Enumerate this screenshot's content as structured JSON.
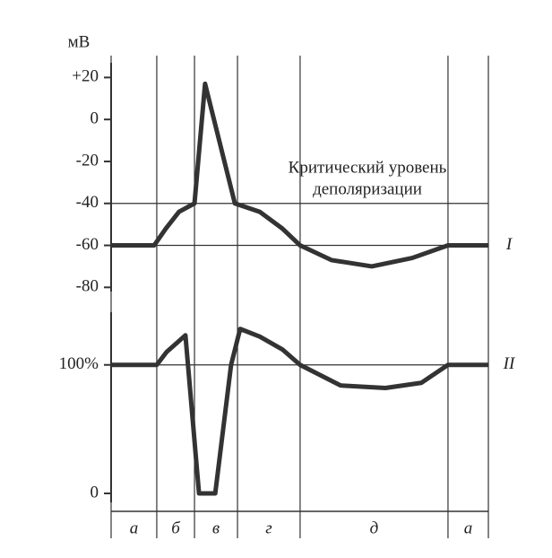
{
  "chart_data": [
    {
      "type": "line",
      "y_unit": "мВ",
      "xlim": [
        0,
        100
      ],
      "ylim": [
        -82,
        27
      ],
      "yticks": [
        {
          "value": 20,
          "label": "+20"
        },
        0,
        -20,
        -40,
        -60,
        -80
      ],
      "reference_lines": [
        -40,
        -60
      ],
      "annotation": [
        "Критический уровень",
        "деполяризации"
      ],
      "series": [
        {
          "name": "I",
          "color": "#333333",
          "x": [
            0,
            11.4,
            14.5,
            18,
            22.1,
            24.9,
            32.8,
            39.4,
            45.4,
            50.1,
            58.4,
            69.1,
            79.8,
            89.3,
            100
          ],
          "values": [
            -60,
            -60,
            -52,
            -44,
            -40,
            17,
            -40,
            -44,
            -52,
            -60,
            -67,
            -70,
            -66,
            -60,
            -60
          ]
        }
      ]
    },
    {
      "type": "line",
      "xlim": [
        0,
        100
      ],
      "ylim": [
        -7,
        141
      ],
      "yticks": [
        {
          "value": 100,
          "label": "100%"
        },
        0
      ],
      "reference_lines": [
        100
      ],
      "phases": {
        "boundaries": [
          12.1,
          22.1,
          33.5,
          50.1,
          89.3
        ],
        "labels": [
          "а",
          "б",
          "в",
          "г",
          "д",
          "а"
        ]
      },
      "series": [
        {
          "name": "II",
          "color": "#333333",
          "x": [
            0,
            12.1,
            14.7,
            19.7,
            23.3,
            27.6,
            31.8,
            34.2,
            39.4,
            45.4,
            50.1,
            60.8,
            72.7,
            82.2,
            89.3,
            100
          ],
          "values": [
            100,
            100,
            110,
            123,
            0,
            0,
            100,
            128,
            122,
            112,
            100,
            84,
            82,
            86,
            100,
            100
          ]
        }
      ]
    }
  ]
}
